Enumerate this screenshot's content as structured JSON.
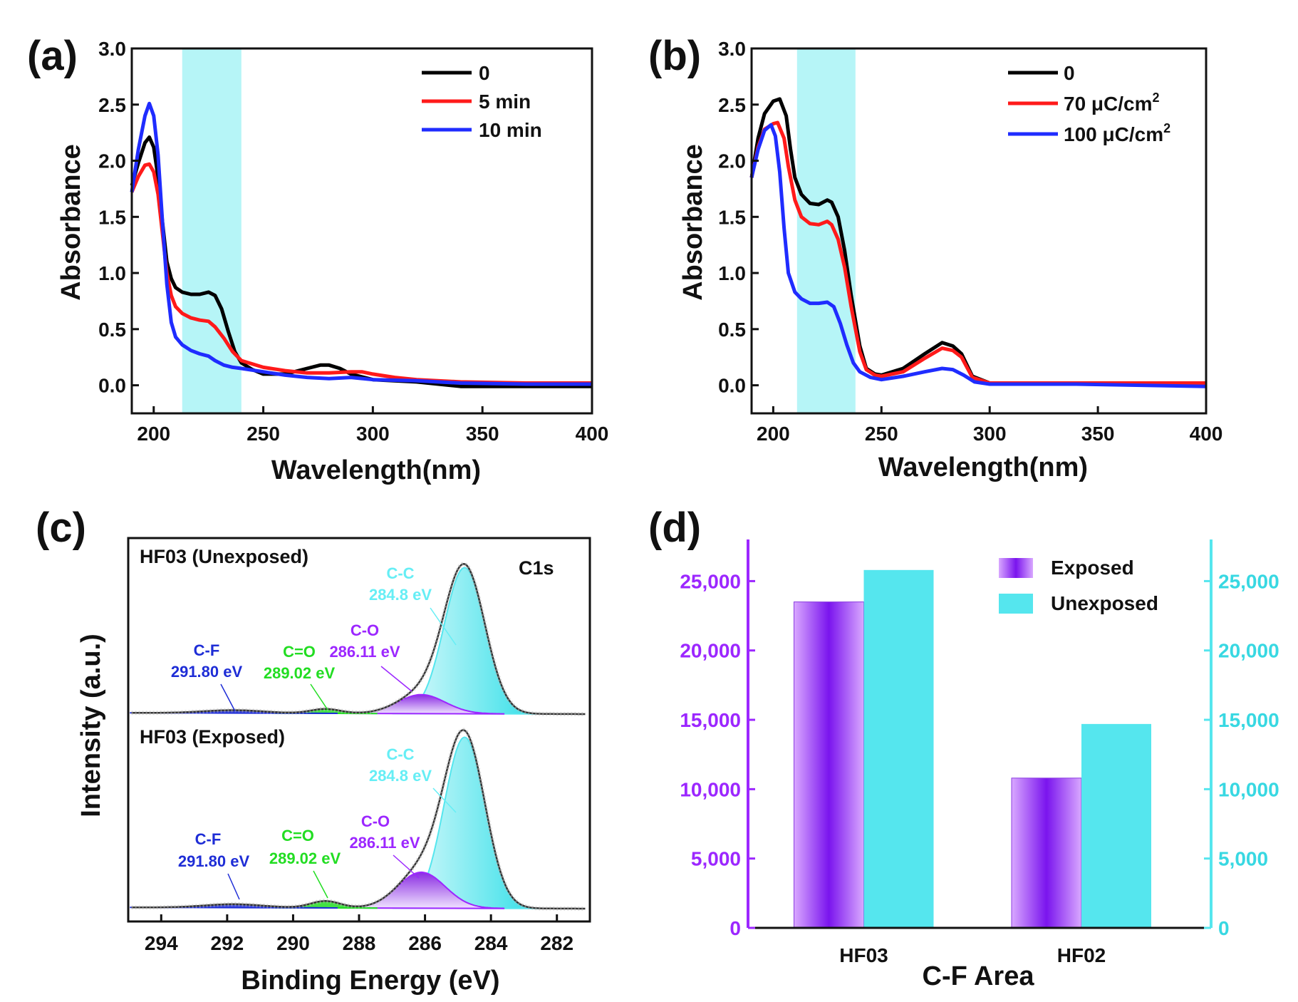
{
  "panels": {
    "a": "(a)",
    "b": "(b)",
    "c": "(c)",
    "d": "(d)"
  },
  "colors": {
    "black": "#000000",
    "red": "#ff1a1a",
    "blue": "#1f2cff",
    "band": "#b6f5f7",
    "cyan": "#55e6ee",
    "purple": "#9c27ff",
    "green": "#22dd22",
    "navy": "#1e2dd6",
    "violet": "#7a1ce0"
  },
  "chart_data": [
    {
      "id": "a",
      "type": "line",
      "xlabel": "Wavelength(nm)",
      "ylabel": "Absorbance",
      "xlim": [
        190,
        400
      ],
      "ylim": [
        -0.25,
        3.0
      ],
      "xticks": [
        200,
        250,
        300,
        350,
        400
      ],
      "xtick_labels": [
        "200",
        "250",
        "300",
        "350",
        "400"
      ],
      "yticks": [
        0.0,
        0.5,
        1.0,
        1.5,
        2.0,
        2.5,
        3.0
      ],
      "ytick_labels": [
        "0.0",
        "0.5",
        "1.0",
        "1.5",
        "2.0",
        "2.5",
        "3.0"
      ],
      "shaded_band": [
        213,
        240
      ],
      "series": [
        {
          "name": "0",
          "color": "#000000",
          "points": [
            [
              190,
              1.78
            ],
            [
              193,
              1.98
            ],
            [
              196,
              2.16
            ],
            [
              198,
              2.21
            ],
            [
              200,
              2.12
            ],
            [
              202,
              1.85
            ],
            [
              204,
              1.45
            ],
            [
              206,
              1.1
            ],
            [
              208,
              0.95
            ],
            [
              210,
              0.87
            ],
            [
              213,
              0.83
            ],
            [
              217,
              0.81
            ],
            [
              221,
              0.81
            ],
            [
              225,
              0.83
            ],
            [
              228,
              0.8
            ],
            [
              231,
              0.68
            ],
            [
              234,
              0.48
            ],
            [
              237,
              0.3
            ],
            [
              240,
              0.2
            ],
            [
              245,
              0.14
            ],
            [
              250,
              0.1
            ],
            [
              260,
              0.1
            ],
            [
              270,
              0.15
            ],
            [
              276,
              0.18
            ],
            [
              280,
              0.18
            ],
            [
              285,
              0.15
            ],
            [
              290,
              0.1
            ],
            [
              300,
              0.05
            ],
            [
              320,
              0.03
            ],
            [
              340,
              -0.01
            ],
            [
              370,
              -0.01
            ],
            [
              400,
              -0.01
            ]
          ]
        },
        {
          "name": "5 min",
          "color": "#ff1a1a",
          "points": [
            [
              190,
              1.72
            ],
            [
              193,
              1.86
            ],
            [
              196,
              1.96
            ],
            [
              198,
              1.97
            ],
            [
              200,
              1.9
            ],
            [
              202,
              1.7
            ],
            [
              204,
              1.35
            ],
            [
              206,
              1.0
            ],
            [
              208,
              0.8
            ],
            [
              210,
              0.7
            ],
            [
              213,
              0.64
            ],
            [
              217,
              0.6
            ],
            [
              221,
              0.58
            ],
            [
              225,
              0.57
            ],
            [
              228,
              0.52
            ],
            [
              232,
              0.42
            ],
            [
              236,
              0.3
            ],
            [
              240,
              0.22
            ],
            [
              250,
              0.16
            ],
            [
              260,
              0.13
            ],
            [
              270,
              0.11
            ],
            [
              280,
              0.11
            ],
            [
              290,
              0.12
            ],
            [
              295,
              0.12
            ],
            [
              300,
              0.1
            ],
            [
              310,
              0.07
            ],
            [
              320,
              0.05
            ],
            [
              340,
              0.03
            ],
            [
              370,
              0.02
            ],
            [
              400,
              0.02
            ]
          ]
        },
        {
          "name": "10 min",
          "color": "#1f2cff",
          "points": [
            [
              190,
              1.72
            ],
            [
              193,
              2.1
            ],
            [
              196,
              2.4
            ],
            [
              198,
              2.51
            ],
            [
              200,
              2.4
            ],
            [
              202,
              2.05
            ],
            [
              204,
              1.45
            ],
            [
              206,
              0.9
            ],
            [
              208,
              0.56
            ],
            [
              210,
              0.43
            ],
            [
              213,
              0.36
            ],
            [
              217,
              0.31
            ],
            [
              221,
              0.28
            ],
            [
              225,
              0.26
            ],
            [
              228,
              0.22
            ],
            [
              232,
              0.18
            ],
            [
              236,
              0.16
            ],
            [
              240,
              0.15
            ],
            [
              250,
              0.12
            ],
            [
              260,
              0.09
            ],
            [
              270,
              0.07
            ],
            [
              280,
              0.06
            ],
            [
              290,
              0.07
            ],
            [
              300,
              0.05
            ],
            [
              320,
              0.04
            ],
            [
              340,
              0.02
            ],
            [
              370,
              0.01
            ],
            [
              400,
              0.01
            ]
          ]
        }
      ]
    },
    {
      "id": "b",
      "type": "line",
      "xlabel": "Wavelength(nm)",
      "ylabel": "Absorbance",
      "xlim": [
        190,
        400
      ],
      "ylim": [
        -0.25,
        3.0
      ],
      "xticks": [
        200,
        250,
        300,
        350,
        400
      ],
      "xtick_labels": [
        "200",
        "250",
        "300",
        "350",
        "400"
      ],
      "yticks": [
        0.0,
        0.5,
        1.0,
        1.5,
        2.0,
        2.5,
        3.0
      ],
      "ytick_labels": [
        "0.0",
        "0.5",
        "1.0",
        "1.5",
        "2.0",
        "2.5",
        "3.0"
      ],
      "shaded_band": [
        211,
        238
      ],
      "series": [
        {
          "name": "0",
          "color": "#000000",
          "points": [
            [
              190,
              1.85
            ],
            [
              193,
              2.2
            ],
            [
              196,
              2.42
            ],
            [
              200,
              2.53
            ],
            [
              203,
              2.55
            ],
            [
              206,
              2.4
            ],
            [
              208,
              2.1
            ],
            [
              210,
              1.85
            ],
            [
              213,
              1.7
            ],
            [
              217,
              1.62
            ],
            [
              221,
              1.61
            ],
            [
              225,
              1.65
            ],
            [
              227,
              1.63
            ],
            [
              230,
              1.5
            ],
            [
              233,
              1.2
            ],
            [
              236,
              0.8
            ],
            [
              240,
              0.35
            ],
            [
              243,
              0.15
            ],
            [
              247,
              0.1
            ],
            [
              250,
              0.09
            ],
            [
              260,
              0.15
            ],
            [
              270,
              0.28
            ],
            [
              278,
              0.38
            ],
            [
              283,
              0.35
            ],
            [
              287,
              0.28
            ],
            [
              292,
              0.08
            ],
            [
              300,
              0.02
            ],
            [
              340,
              0.02
            ],
            [
              400,
              0.02
            ]
          ]
        },
        {
          "name": "70 μC/cm",
          "sup": "2",
          "color": "#ff1a1a",
          "points": [
            [
              190,
              1.85
            ],
            [
              193,
              2.12
            ],
            [
              196,
              2.28
            ],
            [
              200,
              2.33
            ],
            [
              202,
              2.34
            ],
            [
              205,
              2.2
            ],
            [
              207,
              1.95
            ],
            [
              210,
              1.65
            ],
            [
              213,
              1.5
            ],
            [
              217,
              1.44
            ],
            [
              221,
              1.43
            ],
            [
              225,
              1.46
            ],
            [
              227,
              1.43
            ],
            [
              230,
              1.3
            ],
            [
              233,
              1.05
            ],
            [
              236,
              0.7
            ],
            [
              240,
              0.3
            ],
            [
              243,
              0.14
            ],
            [
              247,
              0.09
            ],
            [
              250,
              0.08
            ],
            [
              260,
              0.12
            ],
            [
              270,
              0.24
            ],
            [
              278,
              0.33
            ],
            [
              283,
              0.31
            ],
            [
              287,
              0.25
            ],
            [
              292,
              0.07
            ],
            [
              300,
              0.02
            ],
            [
              340,
              0.02
            ],
            [
              400,
              0.02
            ]
          ]
        },
        {
          "name": "100 μC/cm",
          "sup": "2",
          "color": "#1f2cff",
          "points": [
            [
              190,
              1.85
            ],
            [
              193,
              2.1
            ],
            [
              196,
              2.27
            ],
            [
              199,
              2.32
            ],
            [
              201,
              2.22
            ],
            [
              203,
              1.9
            ],
            [
              205,
              1.4
            ],
            [
              207,
              1.0
            ],
            [
              210,
              0.83
            ],
            [
              213,
              0.77
            ],
            [
              217,
              0.73
            ],
            [
              221,
              0.73
            ],
            [
              225,
              0.74
            ],
            [
              228,
              0.7
            ],
            [
              231,
              0.55
            ],
            [
              234,
              0.36
            ],
            [
              237,
              0.2
            ],
            [
              240,
              0.12
            ],
            [
              245,
              0.07
            ],
            [
              250,
              0.05
            ],
            [
              260,
              0.08
            ],
            [
              270,
              0.12
            ],
            [
              278,
              0.15
            ],
            [
              283,
              0.14
            ],
            [
              288,
              0.09
            ],
            [
              293,
              0.03
            ],
            [
              300,
              0.01
            ],
            [
              340,
              0.01
            ],
            [
              400,
              -0.01
            ]
          ]
        }
      ]
    },
    {
      "id": "c",
      "type": "area",
      "title": "C1s",
      "xlabel": "Binding Energy (eV)",
      "ylabel": "Intensity (a.u.)",
      "xlim": [
        295,
        281
      ],
      "xticks": [
        294,
        292,
        290,
        288,
        286,
        284,
        282
      ],
      "xtick_labels": [
        "294",
        "292",
        "290",
        "288",
        "286",
        "284",
        "282"
      ],
      "series": [
        {
          "name": "HF03 (Unexposed)",
          "peaks": [
            {
              "label": "C-C",
              "energy_label": "284.8 eV",
              "center": 284.8,
              "height": 1.0,
              "color": "#55e6ee"
            },
            {
              "label": "C-O",
              "energy_label": "286.11 eV",
              "center": 286.11,
              "height": 0.13,
              "color": "#9c27ff"
            },
            {
              "label": "C=O",
              "energy_label": "289.02 eV",
              "center": 289.02,
              "height": 0.03,
              "color": "#22dd22"
            },
            {
              "label": "C-F",
              "energy_label": "291.80 eV",
              "center": 291.8,
              "height": 0.02,
              "color": "#1e2dd6"
            }
          ]
        },
        {
          "name": "HF03 (Exposed)",
          "peaks": [
            {
              "label": "C-C",
              "energy_label": "284.8 eV",
              "center": 284.8,
              "height": 1.0,
              "color": "#55e6ee"
            },
            {
              "label": "C-O",
              "energy_label": "286.11 eV",
              "center": 286.11,
              "height": 0.21,
              "color": "#9c27ff"
            },
            {
              "label": "C=O",
              "energy_label": "289.02 eV",
              "center": 289.02,
              "height": 0.04,
              "color": "#22dd22"
            },
            {
              "label": "C-F",
              "energy_label": "291.80 eV",
              "center": 291.8,
              "height": 0.02,
              "color": "#1e2dd6"
            }
          ]
        }
      ]
    },
    {
      "id": "d",
      "type": "bar",
      "xlabel": "C-F Area",
      "categories": [
        "HF03",
        "HF02"
      ],
      "ylim": [
        0,
        28000
      ],
      "yticks": [
        0,
        5000,
        10000,
        15000,
        20000,
        25000
      ],
      "ytick_labels": [
        "0",
        "5,000",
        "10,000",
        "15,000",
        "20,000",
        "25,000"
      ],
      "series": [
        {
          "name": "Exposed",
          "color": "#9c27ff",
          "values": [
            23500,
            10800
          ]
        },
        {
          "name": "Unexposed",
          "color": "#55e6ee",
          "values": [
            25800,
            14700
          ]
        }
      ]
    }
  ]
}
